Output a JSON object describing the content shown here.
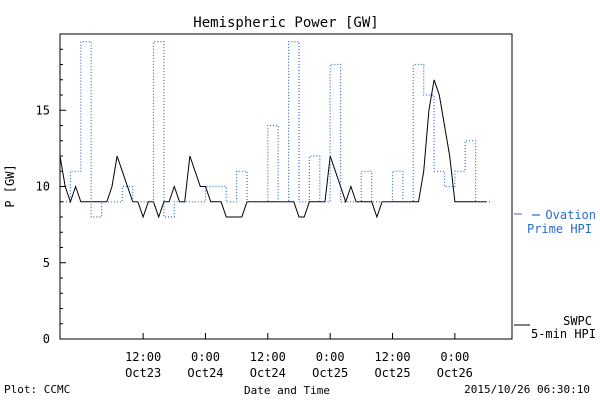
{
  "chart_data": {
    "type": "line",
    "title": "Hemispheric Power [GW]",
    "ylabel": "P [GW]",
    "xlabel": "Date and Time",
    "ylim": [
      0,
      20
    ],
    "yticks": [
      0,
      5,
      10,
      15
    ],
    "xlim": [
      "2015-10-22 20:00",
      "2015-10-26 11:00"
    ],
    "xticks": [
      {
        "t": "2015-10-23 12:00",
        "line1": "12:00",
        "line2": "Oct23"
      },
      {
        "t": "2015-10-24 00:00",
        "line1": "0:00",
        "line2": "Oct24"
      },
      {
        "t": "2015-10-24 12:00",
        "line1": "12:00",
        "line2": "Oct24"
      },
      {
        "t": "2015-10-25 00:00",
        "line1": "0:00",
        "line2": "Oct25"
      },
      {
        "t": "2015-10-25 12:00",
        "line1": "12:00",
        "line2": "Oct25"
      },
      {
        "t": "2015-10-26 00:00",
        "line1": "0:00",
        "line2": "Oct26"
      }
    ],
    "series": [
      {
        "name": "SWPC 5-min HPI",
        "label_lines": [
          "SWPC",
          "5-min HPI"
        ],
        "color": "#000000",
        "style": "solid",
        "x": [
          "2015-10-22 20:00",
          "2015-10-22 21:00",
          "2015-10-22 22:00",
          "2015-10-22 23:00",
          "2015-10-23 00:00",
          "2015-10-23 01:00",
          "2015-10-23 02:00",
          "2015-10-23 03:00",
          "2015-10-23 04:00",
          "2015-10-23 05:00",
          "2015-10-23 06:00",
          "2015-10-23 07:00",
          "2015-10-23 08:00",
          "2015-10-23 09:00",
          "2015-10-23 10:00",
          "2015-10-23 11:00",
          "2015-10-23 12:00",
          "2015-10-23 13:00",
          "2015-10-23 14:00",
          "2015-10-23 15:00",
          "2015-10-23 16:00",
          "2015-10-23 17:00",
          "2015-10-23 18:00",
          "2015-10-23 19:00",
          "2015-10-23 20:00",
          "2015-10-23 21:00",
          "2015-10-23 22:00",
          "2015-10-23 23:00",
          "2015-10-24 00:00",
          "2015-10-24 01:00",
          "2015-10-24 02:00",
          "2015-10-24 03:00",
          "2015-10-24 04:00",
          "2015-10-24 05:00",
          "2015-10-24 06:00",
          "2015-10-24 07:00",
          "2015-10-24 08:00",
          "2015-10-24 09:00",
          "2015-10-24 10:00",
          "2015-10-24 11:00",
          "2015-10-24 12:00",
          "2015-10-24 13:00",
          "2015-10-24 14:00",
          "2015-10-24 15:00",
          "2015-10-24 16:00",
          "2015-10-24 17:00",
          "2015-10-24 18:00",
          "2015-10-24 19:00",
          "2015-10-24 20:00",
          "2015-10-24 21:00",
          "2015-10-24 22:00",
          "2015-10-24 23:00",
          "2015-10-25 00:00",
          "2015-10-25 01:00",
          "2015-10-25 02:00",
          "2015-10-25 03:00",
          "2015-10-25 04:00",
          "2015-10-25 05:00",
          "2015-10-25 06:00",
          "2015-10-25 07:00",
          "2015-10-25 08:00",
          "2015-10-25 09:00",
          "2015-10-25 10:00",
          "2015-10-25 11:00",
          "2015-10-25 12:00",
          "2015-10-25 13:00",
          "2015-10-25 14:00",
          "2015-10-25 15:00",
          "2015-10-25 16:00",
          "2015-10-25 17:00",
          "2015-10-25 18:00",
          "2015-10-25 19:00",
          "2015-10-25 20:00",
          "2015-10-25 21:00",
          "2015-10-25 22:00",
          "2015-10-25 23:00",
          "2015-10-26 00:00",
          "2015-10-26 01:00",
          "2015-10-26 02:00",
          "2015-10-26 03:00",
          "2015-10-26 04:00",
          "2015-10-26 05:00",
          "2015-10-26 06:00"
        ],
        "y": [
          12,
          10,
          9,
          10,
          9,
          9,
          9,
          9,
          9,
          9,
          10,
          12,
          11,
          10,
          9,
          9,
          8,
          9,
          9,
          8,
          9,
          9,
          10,
          9,
          9,
          12,
          11,
          10,
          10,
          9,
          9,
          9,
          8,
          8,
          8,
          8,
          9,
          9,
          9,
          9,
          9,
          9,
          9,
          9,
          9,
          9,
          8,
          8,
          9,
          9,
          9,
          9,
          12,
          11,
          10,
          9,
          10,
          9,
          9,
          9,
          9,
          8,
          9,
          9,
          9,
          9,
          9,
          9,
          9,
          9,
          11,
          15,
          17,
          16,
          14,
          12,
          9,
          9,
          9,
          9,
          9,
          9,
          9
        ]
      },
      {
        "name": "Ovation Prime HPI",
        "label_lines": [
          "Ovation",
          "Prime HPI"
        ],
        "color": "#2a6ccf",
        "style": "dotted",
        "x": [
          "2015-10-22 20:00",
          "2015-10-22 22:00",
          "2015-10-23 00:00",
          "2015-10-23 02:00",
          "2015-10-23 04:00",
          "2015-10-23 06:00",
          "2015-10-23 08:00",
          "2015-10-23 10:00",
          "2015-10-23 12:00",
          "2015-10-23 14:00",
          "2015-10-23 16:00",
          "2015-10-23 18:00",
          "2015-10-23 20:00",
          "2015-10-23 22:00",
          "2015-10-24 00:00",
          "2015-10-24 02:00",
          "2015-10-24 04:00",
          "2015-10-24 06:00",
          "2015-10-24 08:00",
          "2015-10-24 10:00",
          "2015-10-24 12:00",
          "2015-10-24 14:00",
          "2015-10-24 16:00",
          "2015-10-24 18:00",
          "2015-10-24 20:00",
          "2015-10-24 22:00",
          "2015-10-25 00:00",
          "2015-10-25 02:00",
          "2015-10-25 04:00",
          "2015-10-25 06:00",
          "2015-10-25 08:00",
          "2015-10-25 10:00",
          "2015-10-25 12:00",
          "2015-10-25 14:00",
          "2015-10-25 16:00",
          "2015-10-25 18:00",
          "2015-10-25 20:00",
          "2015-10-25 22:00",
          "2015-10-26 00:00",
          "2015-10-26 02:00",
          "2015-10-26 04:00",
          "2015-10-26 06:00"
        ],
        "y": [
          9,
          9,
          11,
          19.5,
          8,
          9,
          9,
          10,
          9,
          9,
          19.5,
          8,
          9,
          9,
          9,
          10,
          10,
          9,
          11,
          9,
          9,
          14,
          9,
          19.5,
          9,
          12,
          9,
          18,
          9,
          9,
          11,
          9,
          9,
          11,
          9,
          18,
          16,
          11,
          10,
          11,
          13,
          9
        ]
      }
    ]
  },
  "footer": {
    "plot_credit": "Plot: CCMC",
    "timestamp": "2015/10/26 06:30:10"
  }
}
